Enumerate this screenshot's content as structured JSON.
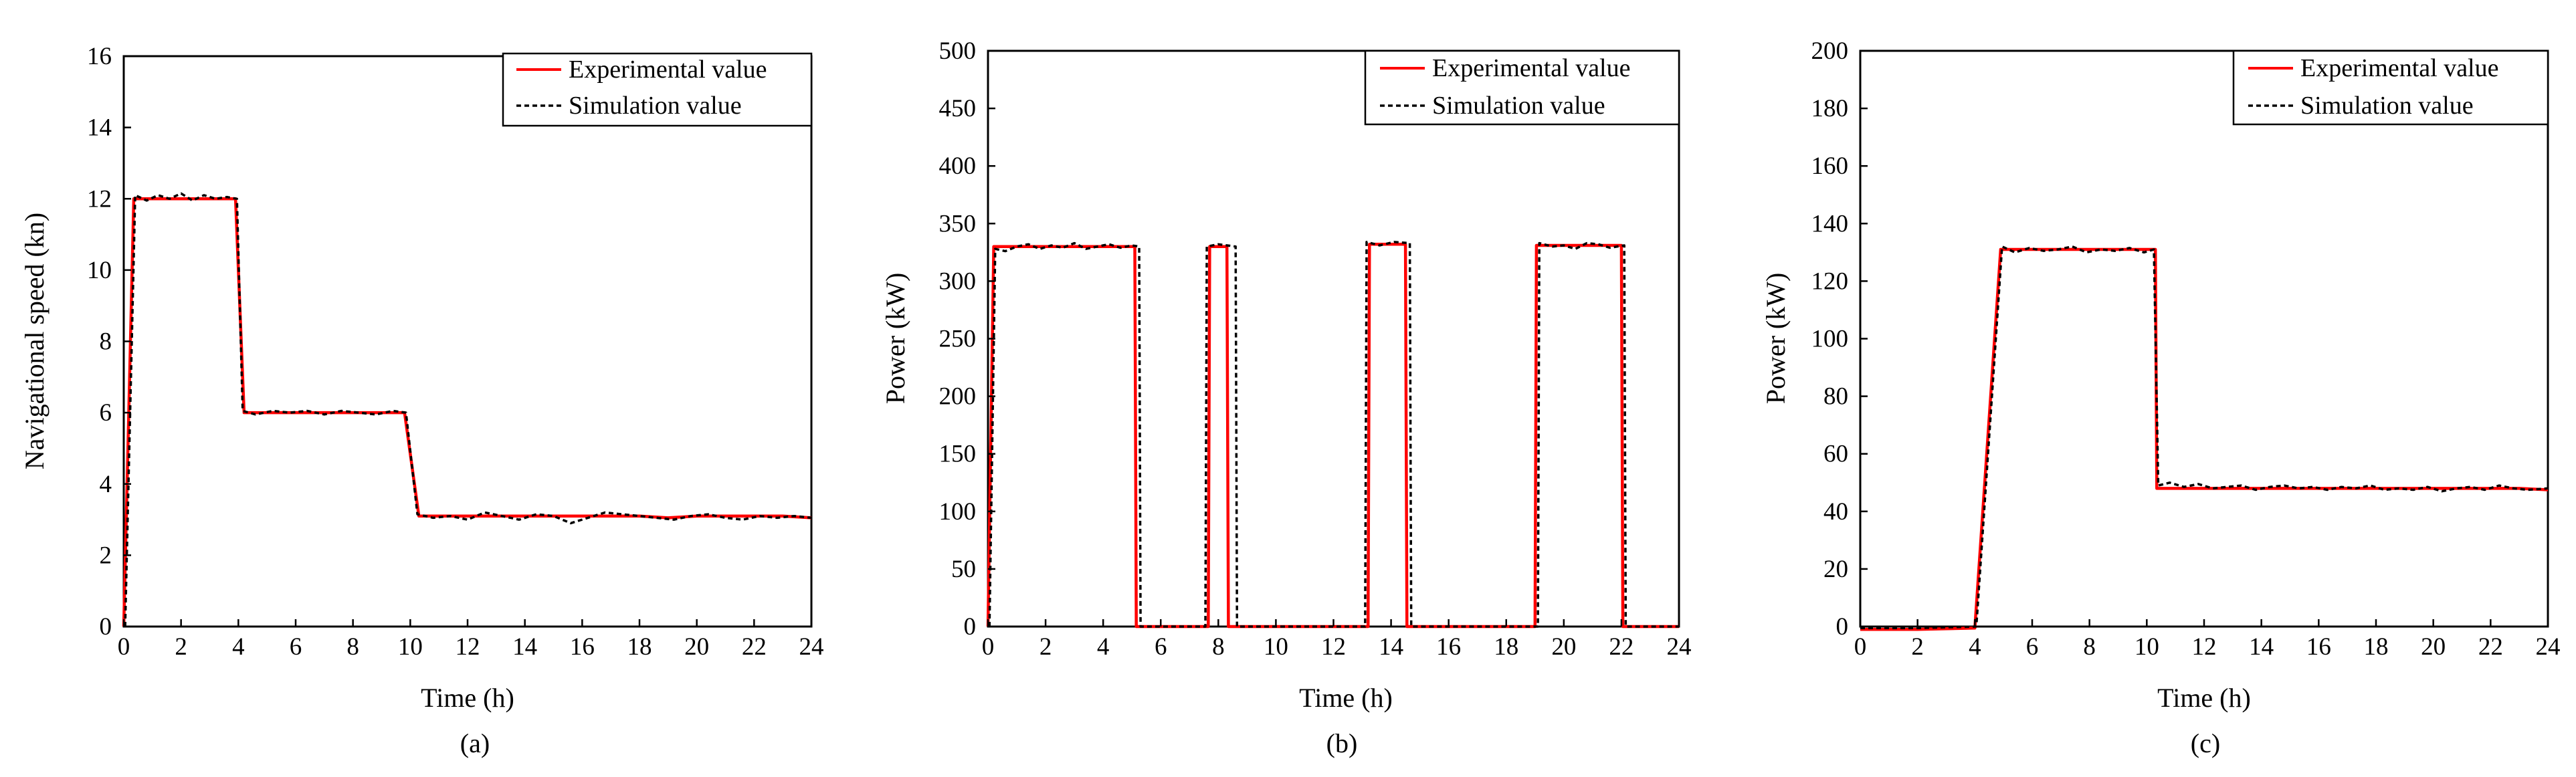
{
  "chart_data": [
    {
      "type": "line",
      "caption": "(a)",
      "xlabel": "Time (h)",
      "ylabel": "Navigational speed (kn)",
      "xlim": [
        0,
        24
      ],
      "ylim": [
        0,
        16
      ],
      "xticks": [
        0,
        2,
        4,
        6,
        8,
        10,
        12,
        14,
        16,
        18,
        20,
        22,
        24
      ],
      "yticks": [
        0,
        2,
        4,
        6,
        8,
        10,
        12,
        14,
        16
      ],
      "legend": {
        "position": "top-right",
        "entries": [
          "Experimental value",
          "Simulation value"
        ]
      },
      "series": [
        {
          "name": "Experimental value",
          "color": "#ff0000",
          "style": "solid",
          "x": [
            0,
            0.35,
            1,
            2,
            3,
            3.9,
            4.2,
            5,
            6,
            7,
            8,
            9,
            9.8,
            10.3,
            11,
            12,
            13,
            14,
            15,
            16,
            17,
            18,
            19,
            20,
            21,
            22,
            23,
            24
          ],
          "y": [
            0,
            12,
            12,
            12,
            12,
            12,
            6,
            6,
            6,
            6,
            6,
            6,
            6,
            3.1,
            3.1,
            3.1,
            3.1,
            3.1,
            3.1,
            3.1,
            3.1,
            3.1,
            3.05,
            3.1,
            3.1,
            3.1,
            3.1,
            3.05
          ]
        },
        {
          "name": "Simulation value",
          "color": "#000000",
          "style": "dashed",
          "x": [
            0.05,
            0.4,
            0.8,
            1.2,
            1.6,
            2,
            2.4,
            2.8,
            3.2,
            3.6,
            3.95,
            4.15,
            4.6,
            5.2,
            5.8,
            6.4,
            7,
            7.6,
            8.2,
            8.8,
            9.4,
            9.85,
            10.25,
            10.8,
            11.4,
            12,
            12.6,
            13.2,
            13.8,
            14.4,
            15,
            15.6,
            16.2,
            16.8,
            17.4,
            18,
            18.6,
            19.2,
            19.8,
            20.4,
            21,
            21.6,
            22.2,
            22.8,
            23.4,
            24
          ],
          "y": [
            0,
            12.1,
            11.95,
            12.1,
            12.0,
            12.15,
            11.95,
            12.1,
            12.0,
            12.05,
            12.0,
            6.05,
            5.95,
            6.05,
            6.0,
            6.05,
            5.95,
            6.05,
            6.0,
            5.95,
            6.05,
            6.0,
            3.15,
            3.05,
            3.1,
            3.0,
            3.2,
            3.1,
            3.0,
            3.15,
            3.1,
            2.9,
            3.05,
            3.2,
            3.15,
            3.1,
            3.05,
            3.0,
            3.1,
            3.15,
            3.05,
            3.0,
            3.1,
            3.05,
            3.1,
            3.05
          ]
        }
      ]
    },
    {
      "type": "line",
      "caption": "(b)",
      "xlabel": "Time (h)",
      "ylabel": "Power (kW)",
      "xlim": [
        0,
        24
      ],
      "ylim": [
        0,
        500
      ],
      "xticks": [
        0,
        2,
        4,
        6,
        8,
        10,
        12,
        14,
        16,
        18,
        20,
        22,
        24
      ],
      "yticks": [
        0,
        50,
        100,
        150,
        200,
        250,
        300,
        350,
        400,
        450,
        500
      ],
      "legend": {
        "position": "top-right",
        "entries": [
          "Experimental value",
          "Simulation value"
        ]
      },
      "series": [
        {
          "name": "Experimental value",
          "color": "#ff0000",
          "style": "solid",
          "x": [
            0,
            0.2,
            1,
            2,
            3,
            4,
            5.1,
            5.15,
            7.65,
            7.7,
            8.3,
            8.35,
            13.2,
            13.25,
            14.5,
            14.55,
            19.0,
            19.05,
            22.0,
            22.05,
            24
          ],
          "y": [
            0,
            330,
            330,
            330,
            330,
            330,
            330,
            0,
            0,
            330,
            330,
            0,
            0,
            332,
            332,
            0,
            0,
            331,
            331,
            0,
            0
          ]
        },
        {
          "name": "Simulation value",
          "color": "#000000",
          "style": "dashed",
          "x": [
            0.05,
            0.25,
            0.6,
            1.0,
            1.4,
            1.8,
            2.2,
            2.6,
            3.0,
            3.4,
            3.8,
            4.2,
            4.6,
            5.0,
            5.25,
            5.3,
            7.55,
            7.6,
            8.0,
            8.6,
            8.65,
            13.1,
            13.15,
            13.6,
            14.1,
            14.65,
            14.7,
            19.1,
            19.15,
            19.6,
            20.0,
            20.4,
            20.8,
            21.2,
            21.6,
            22.1,
            22.15,
            24
          ],
          "y": [
            0,
            328,
            326,
            330,
            332,
            328,
            331,
            329,
            333,
            328,
            330,
            332,
            329,
            331,
            330,
            0,
            0,
            330,
            332,
            330,
            0,
            0,
            334,
            331,
            334,
            333,
            0,
            0,
            333,
            330,
            331,
            328,
            333,
            332,
            329,
            331,
            0,
            0
          ]
        }
      ]
    },
    {
      "type": "line",
      "caption": "(c)",
      "xlabel": "Time (h)",
      "ylabel": "Power (kW)",
      "xlim": [
        0,
        24
      ],
      "ylim": [
        0,
        200
      ],
      "xticks": [
        0,
        2,
        4,
        6,
        8,
        10,
        12,
        14,
        16,
        18,
        20,
        22,
        24
      ],
      "yticks": [
        0,
        20,
        40,
        60,
        80,
        100,
        120,
        140,
        160,
        180,
        200
      ],
      "legend": {
        "position": "top-right",
        "entries": [
          "Experimental value",
          "Simulation value"
        ]
      },
      "series": [
        {
          "name": "Experimental value",
          "color": "#ff0000",
          "style": "solid",
          "x": [
            0,
            2,
            4,
            4.9,
            6,
            7,
            8,
            9,
            10.3,
            10.35,
            11,
            12,
            13,
            14,
            15,
            16,
            17,
            18,
            19,
            20,
            21,
            22,
            23,
            24
          ],
          "y": [
            -1,
            -1,
            -0.5,
            131,
            131,
            131,
            131,
            131,
            131,
            48,
            48,
            48,
            48,
            48,
            48,
            48,
            48,
            48,
            48,
            48,
            48,
            48,
            48,
            47.5
          ]
        },
        {
          "name": "Simulation value",
          "color": "#000000",
          "style": "dashed",
          "x": [
            0,
            2,
            4.05,
            4.95,
            5.4,
            5.9,
            6.4,
            6.9,
            7.4,
            7.9,
            8.4,
            8.9,
            9.4,
            9.9,
            10.25,
            10.4,
            10.8,
            11.3,
            11.8,
            12.3,
            12.8,
            13.3,
            13.8,
            14.3,
            14.8,
            15.3,
            15.8,
            16.3,
            16.8,
            17.3,
            17.8,
            18.3,
            18.8,
            19.3,
            19.8,
            20.3,
            20.8,
            21.3,
            21.8,
            22.3,
            22.8,
            23.3,
            24
          ],
          "y": [
            -0.5,
            -0.5,
            0,
            132,
            130,
            131.5,
            130.5,
            131,
            132,
            130,
            131,
            130.5,
            131.5,
            130,
            131,
            49,
            50,
            48.5,
            49.5,
            48,
            48.5,
            49,
            47.5,
            48.5,
            49,
            48,
            48.5,
            47.5,
            48.5,
            48,
            49,
            47.5,
            48,
            47.5,
            48.5,
            47,
            48,
            48.5,
            47.5,
            49,
            48,
            47.5,
            48
          ]
        }
      ]
    }
  ]
}
